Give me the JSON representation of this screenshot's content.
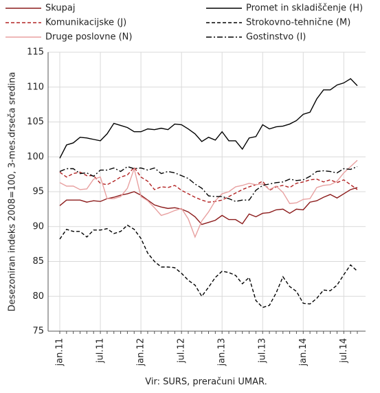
{
  "chart_data": {
    "type": "line",
    "y_label": "Desezoniran indeks 2008=100, 3-mes.drseča sredina",
    "source": "Vir:  SURS, preračuni UMAR.",
    "categories": [
      "jan.11",
      null,
      null,
      null,
      null,
      null,
      "jul.11",
      null,
      null,
      null,
      null,
      null,
      "jan.12",
      null,
      null,
      null,
      null,
      null,
      "jul.12",
      null,
      null,
      null,
      null,
      null,
      "jan.13",
      null,
      null,
      null,
      null,
      null,
      "jul.13",
      null,
      null,
      null,
      null,
      null,
      "jan.14",
      null,
      null,
      null,
      null,
      null,
      "jul.14",
      null,
      null
    ],
    "ylim": [
      75,
      115
    ],
    "yticks": [
      75,
      80,
      85,
      90,
      95,
      100,
      105,
      110,
      115
    ],
    "grid": true,
    "series": [
      {
        "name": "Skupaj",
        "color": "#8b1a1a",
        "dash": "solid",
        "values": [
          93.0,
          93.8,
          93.8,
          93.8,
          93.5,
          93.7,
          93.6,
          94.0,
          94.2,
          94.5,
          94.7,
          95.0,
          94.5,
          93.8,
          93.1,
          92.8,
          92.6,
          92.7,
          92.5,
          92.1,
          91.4,
          90.3,
          90.6,
          90.9,
          91.6,
          91.0,
          91.0,
          90.4,
          91.8,
          91.4,
          91.9,
          92.0,
          92.4,
          92.5,
          91.9,
          92.5,
          92.4,
          93.5,
          93.7,
          94.2,
          94.6,
          94.1,
          94.7,
          95.3,
          95.6
        ]
      },
      {
        "name": "Promet in skladiščenje (H)",
        "color": "#000000",
        "dash": "solid",
        "values": [
          99.8,
          101.7,
          102.0,
          102.8,
          102.7,
          102.5,
          102.3,
          103.3,
          104.8,
          104.5,
          104.2,
          103.6,
          103.6,
          104.0,
          103.9,
          104.1,
          103.9,
          104.7,
          104.6,
          104.0,
          103.3,
          102.2,
          102.8,
          102.4,
          103.6,
          102.3,
          102.3,
          101.1,
          102.7,
          102.9,
          104.6,
          104.0,
          104.3,
          104.4,
          104.7,
          105.2,
          106.1,
          106.4,
          108.3,
          109.6,
          109.6,
          110.3,
          110.6,
          111.2,
          110.2
        ]
      },
      {
        "name": "Komunikacijske (J)",
        "color": "#b22222",
        "dash": "dashed",
        "values": [
          97.8,
          97.1,
          97.6,
          97.8,
          97.3,
          97.3,
          96.2,
          96.0,
          96.5,
          97.1,
          97.4,
          98.5,
          97.1,
          96.5,
          95.3,
          95.7,
          95.6,
          95.9,
          95.2,
          94.7,
          94.2,
          93.8,
          93.5,
          93.6,
          93.8,
          94.3,
          94.8,
          95.3,
          95.7,
          96.0,
          96.5,
          95.2,
          95.7,
          95.9,
          95.6,
          96.2,
          96.4,
          96.7,
          96.8,
          96.4,
          96.7,
          96.3,
          96.7,
          96.0,
          95.3
        ]
      },
      {
        "name": "Strokovno-tehnične (M)",
        "color": "#000000",
        "dash": "dashed",
        "values": [
          88.2,
          89.6,
          89.3,
          89.3,
          88.5,
          89.5,
          89.5,
          89.7,
          89.0,
          89.3,
          90.2,
          89.6,
          88.3,
          86.2,
          85.0,
          84.2,
          84.2,
          84.1,
          83.3,
          82.3,
          81.6,
          80.0,
          81.3,
          82.7,
          83.6,
          83.4,
          83.0,
          81.8,
          82.7,
          79.4,
          78.4,
          78.7,
          80.5,
          82.8,
          81.4,
          80.7,
          79.0,
          78.9,
          79.7,
          80.9,
          80.8,
          81.6,
          83.1,
          84.5,
          83.6
        ]
      },
      {
        "name": "Druge poslovne (N)",
        "color": "#e8a0a0",
        "dash": "solid",
        "values": [
          96.3,
          95.8,
          95.8,
          95.3,
          95.4,
          96.8,
          97.1,
          94.0,
          94.0,
          94.3,
          95.5,
          98.3,
          94.3,
          93.7,
          92.7,
          91.6,
          91.9,
          92.3,
          92.6,
          91.1,
          88.5,
          90.8,
          92.1,
          93.7,
          94.7,
          95.0,
          95.7,
          95.9,
          96.2,
          96.0,
          96.1,
          95.3,
          95.8,
          94.9,
          93.3,
          93.4,
          93.9,
          94.0,
          95.6,
          95.9,
          96.0,
          96.5,
          97.7,
          98.6,
          99.5
        ]
      },
      {
        "name": "Gostinstvo (I)",
        "color": "#000000",
        "dash": "dashdot",
        "values": [
          97.9,
          98.3,
          98.3,
          97.6,
          97.7,
          97.2,
          98.1,
          98.1,
          98.4,
          97.9,
          98.6,
          98.3,
          98.4,
          98.1,
          98.4,
          97.6,
          97.9,
          97.7,
          97.3,
          96.9,
          96.1,
          95.5,
          94.4,
          94.3,
          94.3,
          94.0,
          93.6,
          93.8,
          93.8,
          95.2,
          95.9,
          96.1,
          96.3,
          96.4,
          96.8,
          96.6,
          96.7,
          97.2,
          97.9,
          98.0,
          97.9,
          97.7,
          98.3,
          98.2,
          98.6
        ]
      }
    ]
  }
}
